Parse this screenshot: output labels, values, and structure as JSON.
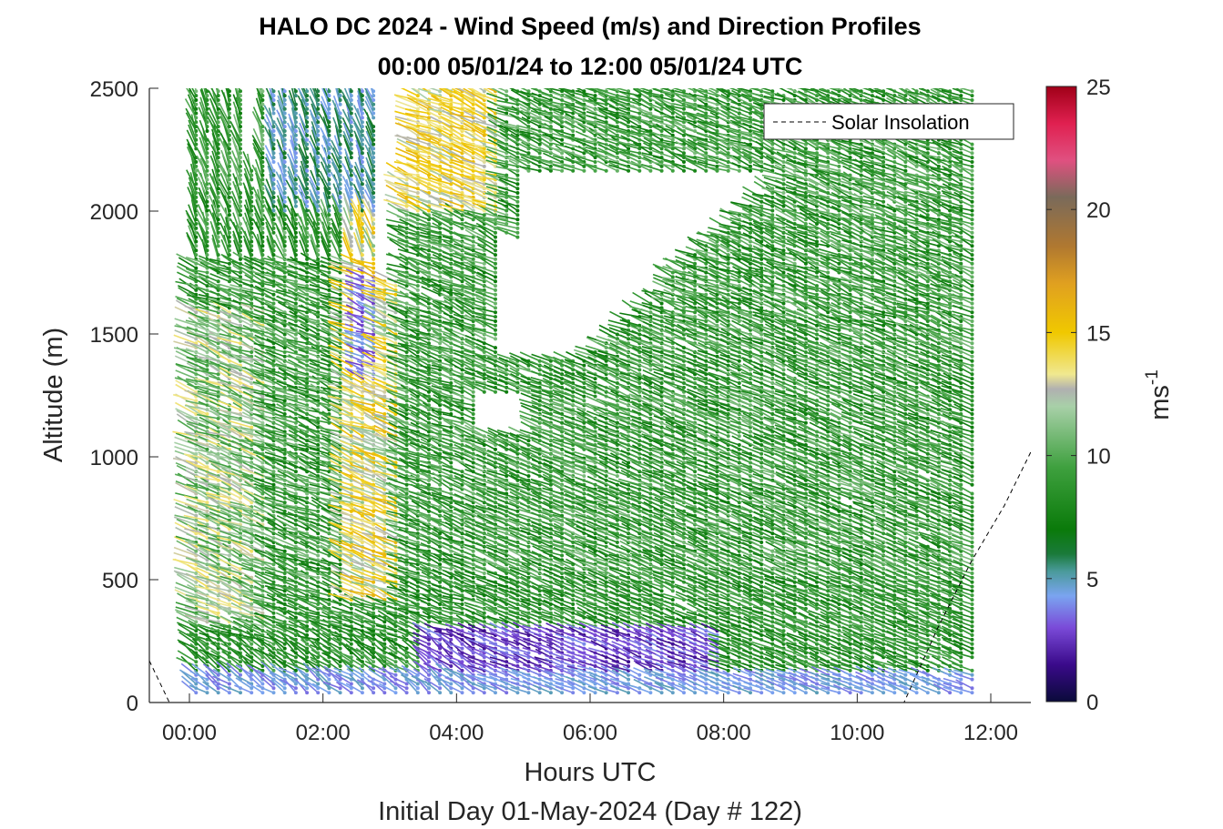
{
  "chart_data": {
    "type": "wind-barb-profile",
    "title_line1": "HALO DC 2024 - Wind Speed (m/s) and Direction Profiles",
    "title_line2": "00:00 05/01/24 to 12:00 05/01/24  UTC",
    "xlabel": "Hours UTC",
    "subtitle": "Initial Day 01-May-2024 (Day # 122)",
    "ylabel": "Altitude (m)",
    "xlim_hours": [
      -0.6,
      12.6
    ],
    "ylim_m": [
      0,
      2500
    ],
    "x_ticks": [
      {
        "value": 0,
        "label": "00:00"
      },
      {
        "value": 2,
        "label": "02:00"
      },
      {
        "value": 4,
        "label": "04:00"
      },
      {
        "value": 6,
        "label": "06:00"
      },
      {
        "value": 8,
        "label": "08:00"
      },
      {
        "value": 10,
        "label": "10:00"
      },
      {
        "value": 12,
        "label": "12:00"
      }
    ],
    "y_ticks": [
      {
        "value": 0,
        "label": "0"
      },
      {
        "value": 500,
        "label": "500"
      },
      {
        "value": 1000,
        "label": "1000"
      },
      {
        "value": 1500,
        "label": "1500"
      },
      {
        "value": 2000,
        "label": "2000"
      },
      {
        "value": 2500,
        "label": "2500"
      }
    ],
    "colorbar": {
      "label_main": "ms",
      "label_exp": "-1",
      "range": [
        0,
        25
      ],
      "ticks": [
        {
          "value": 0,
          "label": "0"
        },
        {
          "value": 5,
          "label": "5"
        },
        {
          "value": 10,
          "label": "10"
        },
        {
          "value": 15,
          "label": "15"
        },
        {
          "value": 20,
          "label": "20"
        },
        {
          "value": 25,
          "label": "25"
        }
      ],
      "stops": [
        {
          "v": 0,
          "color": "#0a0a3a"
        },
        {
          "v": 1.5,
          "color": "#3a0a8a"
        },
        {
          "v": 3,
          "color": "#7a4ad8"
        },
        {
          "v": 4.3,
          "color": "#7aa4f0"
        },
        {
          "v": 5.3,
          "color": "#4a9a9a"
        },
        {
          "v": 6,
          "color": "#1a7a3a"
        },
        {
          "v": 7,
          "color": "#0a7a0a"
        },
        {
          "v": 9.5,
          "color": "#3ea03e"
        },
        {
          "v": 12,
          "color": "#a8d0a8"
        },
        {
          "v": 12.7,
          "color": "#b0b0b0"
        },
        {
          "v": 13.3,
          "color": "#f0e890"
        },
        {
          "v": 15,
          "color": "#f0c800"
        },
        {
          "v": 17,
          "color": "#e0a020"
        },
        {
          "v": 18.5,
          "color": "#b07830"
        },
        {
          "v": 20.5,
          "color": "#7a6a5a"
        },
        {
          "v": 22,
          "color": "#e05080"
        },
        {
          "v": 23.5,
          "color": "#e02050"
        },
        {
          "v": 25,
          "color": "#a00018"
        }
      ]
    },
    "legend": {
      "entries": [
        {
          "label": "Solar Insolation",
          "style": "dashed",
          "color": "#000000"
        }
      ],
      "location": "top-right"
    },
    "solar_insolation_curve": [
      {
        "x": -0.6,
        "y": 170
      },
      {
        "x": -0.3,
        "y": 0
      },
      {
        "x": 10.7,
        "y": 0
      },
      {
        "x": 11.2,
        "y": 300
      },
      {
        "x": 11.7,
        "y": 570
      },
      {
        "x": 12.2,
        "y": 800
      },
      {
        "x": 12.6,
        "y": 1020
      }
    ],
    "profile_time_step_hours": 0.166,
    "profile_first_hour": 0.1,
    "profile_last_hour": 11.8,
    "altitude_step_m": 18,
    "notes_visible": "wind barbs coloured by speed; gaps in upper levels"
  }
}
